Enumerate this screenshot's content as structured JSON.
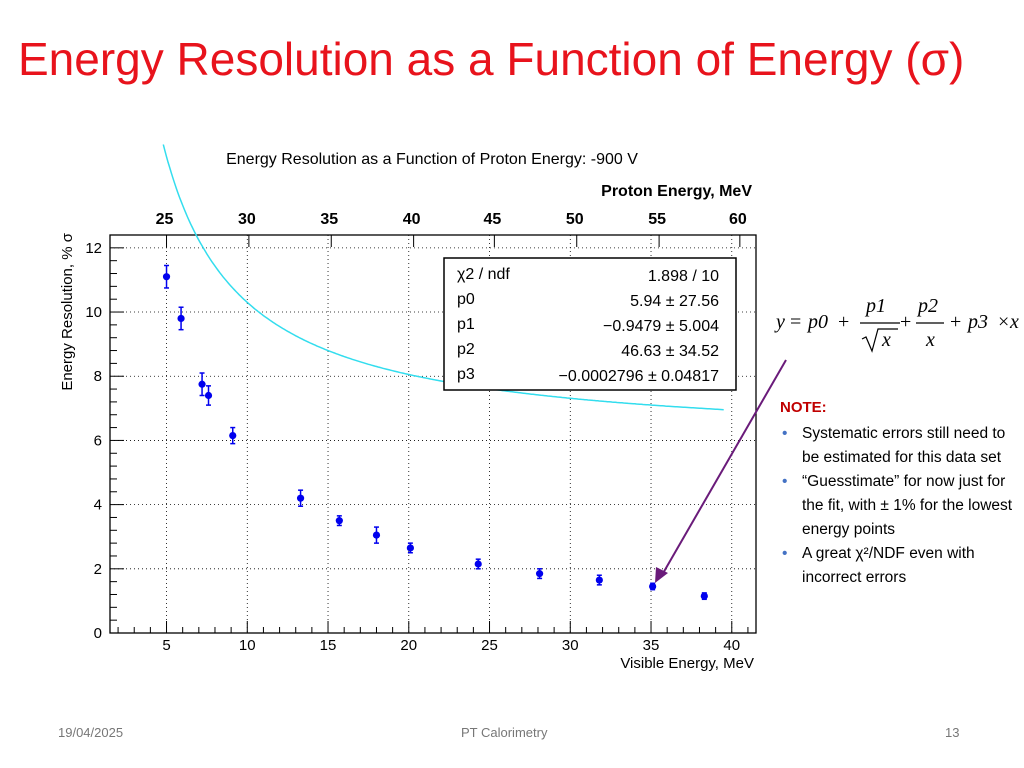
{
  "slide": {
    "title": "Energy Resolution as a Function of Energy (σ)",
    "footer_date": "19/04/2025",
    "footer_center": "PT Calorimetry",
    "footer_page": "13"
  },
  "chart_data": {
    "type": "scatter",
    "title": "Energy Resolution as a Function of Proton Energy: -900 V",
    "xlabel": "Visible Energy, MeV",
    "ylabel": "Energy Resolution, % σ",
    "top_axis_label": "Proton Energy, MeV",
    "xlim": [
      1.5,
      41.5
    ],
    "ylim": [
      0,
      12.4
    ],
    "x_ticks": [
      "5",
      "10",
      "15",
      "20",
      "25",
      "30",
      "35",
      "40"
    ],
    "y_ticks": [
      "0",
      "2",
      "4",
      "6",
      "8",
      "10",
      "12"
    ],
    "top_ticks": [
      "25",
      "30",
      "35",
      "40",
      "45",
      "50",
      "55",
      "60"
    ],
    "top_tick_positions_visible_energy": [
      5.0,
      10.1,
      15.2,
      20.3,
      25.3,
      30.4,
      35.5,
      40.5
    ],
    "grid": true,
    "series": [
      {
        "points": [
          {
            "x": 5.0,
            "y": 11.1,
            "err": 0.35
          },
          {
            "x": 5.9,
            "y": 9.8,
            "err": 0.35
          },
          {
            "x": 7.2,
            "y": 7.75,
            "err": 0.35
          },
          {
            "x": 7.6,
            "y": 7.4,
            "err": 0.3
          },
          {
            "x": 9.1,
            "y": 6.15,
            "err": 0.25
          },
          {
            "x": 13.3,
            "y": 4.2,
            "err": 0.25
          },
          {
            "x": 15.7,
            "y": 3.5,
            "err": 0.15
          },
          {
            "x": 18.0,
            "y": 3.05,
            "err": 0.25
          },
          {
            "x": 20.1,
            "y": 2.65,
            "err": 0.15
          },
          {
            "x": 24.3,
            "y": 2.15,
            "err": 0.15
          },
          {
            "x": 28.1,
            "y": 1.85,
            "err": 0.15
          },
          {
            "x": 31.8,
            "y": 1.65,
            "err": 0.15
          },
          {
            "x": 35.1,
            "y": 1.45,
            "err": 0.1
          },
          {
            "x": 38.3,
            "y": 1.15,
            "err": 0.1
          }
        ],
        "color": "#0000ee"
      }
    ],
    "fit": {
      "params": {
        "p0": 5.94,
        "p1": -0.9479,
        "p2": 46.63,
        "p3": -0.0002796
      },
      "range": [
        4.8,
        39.6
      ],
      "color": "#33ddee"
    },
    "stats_box": [
      {
        "label": "χ2 / ndf",
        "value": "1.898 / 10"
      },
      {
        "label": "p0",
        "value": "5.94 ± 27.56"
      },
      {
        "label": "p1",
        "value": "−0.9479 ± 5.004"
      },
      {
        "label": "p2",
        "value": "46.63 ± 34.52"
      },
      {
        "label": "p3",
        "value": "−0.0002796 ± 0.04817"
      }
    ]
  },
  "formula": {
    "lhs": "y",
    "eq": "=",
    "p0": "p0",
    "plus": "+",
    "p1": "p1",
    "sqrt_x": "x",
    "p2": "p2",
    "x": "x",
    "p3": "p3",
    "times": "×",
    "x_last": "x",
    "radical": "√"
  },
  "note": {
    "title": "NOTE:",
    "items": [
      "Systematic errors still need to be estimated for this data set",
      "“Guesstimate” for now just for the fit, with ± 1% for the lowest energy points",
      "A great χ²/NDF even with incorrect errors"
    ]
  },
  "arrow_color": "#6a1b7a"
}
